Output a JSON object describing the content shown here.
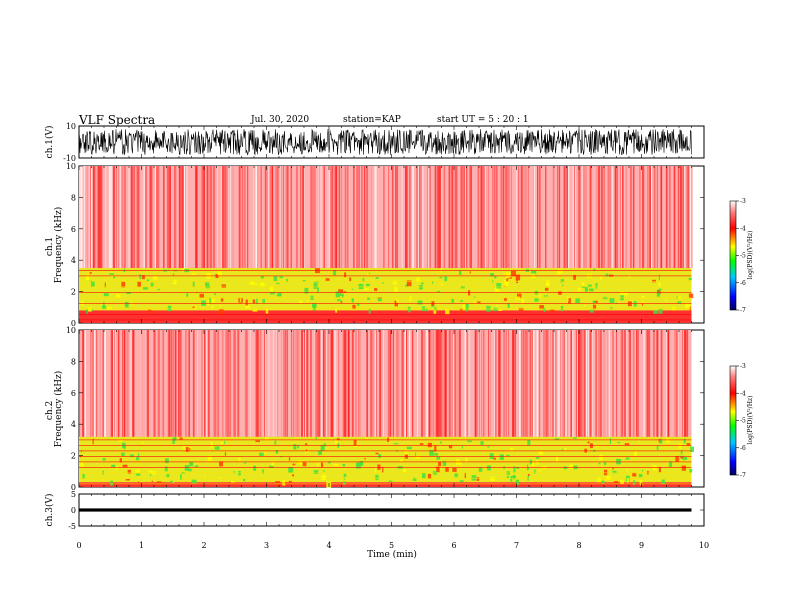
{
  "header": {
    "title": "VLF Spectra",
    "date": "Jul. 30, 2020",
    "station": "station=KAP",
    "start": "start UT =  5 : 20 : 1"
  },
  "colors": {
    "background": "#ffffff",
    "axis": "#000000",
    "colormap": [
      "#00007a",
      "#0000ff",
      "#00c8ff",
      "#00ff00",
      "#ffff00",
      "#ff0000",
      "#ffffff"
    ]
  },
  "chart_data": [
    {
      "type": "line",
      "panel": "ch1-waveform",
      "ylabel": "ch.1(V)",
      "ylim": [
        -10,
        10
      ],
      "yticks": [
        "10",
        "-10"
      ],
      "xlim": [
        0,
        10
      ],
      "note_values": "dense oscillating waveform spanning roughly -8 to 8 V over 0–9.8 min"
    },
    {
      "type": "heatmap",
      "panel": "ch1-spectrogram",
      "ylabel": "ch.1\nFrequency (kHz)",
      "ylabel_lines": [
        "ch.1",
        "Frequency (kHz)"
      ],
      "ylim": [
        0,
        10
      ],
      "yticks": [
        "0",
        "2",
        "4",
        "6",
        "8",
        "10"
      ],
      "xlim": [
        0,
        10
      ],
      "data_extent_min": 9.8,
      "colorbar": {
        "label": "log(PSD)(V²/Hz)",
        "range": [
          -7,
          -3
        ],
        "ticks": [
          "-3",
          "-4",
          "-5",
          "-6",
          "-7"
        ]
      },
      "bands_khz": {
        "strong_low": [
          0.8,
          3.5
        ],
        "weak_high": [
          3.5,
          10
        ]
      }
    },
    {
      "type": "heatmap",
      "panel": "ch2-spectrogram",
      "ylabel": "ch.2\nFrequency (kHz)",
      "ylabel_lines": [
        "ch.2",
        "Frequency (kHz)"
      ],
      "ylim": [
        0,
        10
      ],
      "yticks": [
        "0",
        "2",
        "4",
        "6",
        "8",
        "10"
      ],
      "xlim": [
        0,
        10
      ],
      "data_extent_min": 9.8,
      "colorbar": {
        "label": "log(PSD)(V²/Hz)",
        "range": [
          -7,
          -3
        ],
        "ticks": [
          "-3",
          "-4",
          "-5",
          "-6",
          "-7"
        ]
      },
      "bands_khz": {
        "strong_low": [
          0.3,
          3.2
        ],
        "weak_high": [
          3.2,
          10
        ]
      }
    },
    {
      "type": "line",
      "panel": "ch3-waveform",
      "ylabel": "ch.3(V)",
      "ylim": [
        -5,
        5
      ],
      "yticks": [
        "5",
        "0",
        "-5"
      ],
      "xlim": [
        0,
        10
      ],
      "note_values": "narrow band around 0 V over 0–9.8 min"
    }
  ],
  "xaxis": {
    "label": "Time (min)",
    "ticks": [
      "0",
      "1",
      "2",
      "3",
      "4",
      "5",
      "6",
      "7",
      "8",
      "9",
      "10"
    ]
  }
}
